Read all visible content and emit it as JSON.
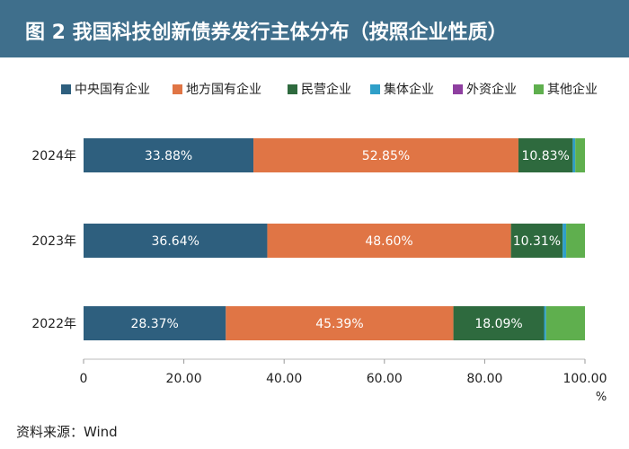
{
  "title": "图 2    我国科技创新债券发行主体分布（按照企业性质）",
  "source": "资料来源：Wind",
  "colors": {
    "title_bg": "#3f6f8c",
    "series": [
      "#2e5f7e",
      "#e07545",
      "#2e6a3e",
      "#2f9fc8",
      "#8e3fa0",
      "#5faf4e"
    ],
    "grid": "#cccccc",
    "bar_label": "#ffffff"
  },
  "chart_data": {
    "type": "bar",
    "orientation": "horizontal",
    "stacked": true,
    "categories": [
      "2024年",
      "2023年",
      "2022年"
    ],
    "series": [
      {
        "name": "中央国有企业",
        "values": [
          33.88,
          36.64,
          28.37
        ],
        "labels": [
          "33.88%",
          "36.64%",
          "28.37%"
        ]
      },
      {
        "name": "地方国有企业",
        "values": [
          52.85,
          48.6,
          45.39
        ],
        "labels": [
          "52.85%",
          "48.60%",
          "45.39%"
        ]
      },
      {
        "name": "民营企业",
        "values": [
          10.83,
          10.31,
          18.09
        ],
        "labels": [
          "10.83%",
          "10.31%",
          "18.09%"
        ]
      },
      {
        "name": "集体企业",
        "values": [
          0.5,
          0.7,
          0.4
        ],
        "labels": [
          "",
          "",
          ""
        ]
      },
      {
        "name": "外资企业",
        "values": [
          0.0,
          0.0,
          0.0
        ],
        "labels": [
          "",
          "",
          ""
        ]
      },
      {
        "name": "其他企业",
        "values": [
          1.94,
          3.75,
          7.75
        ],
        "labels": [
          "",
          "",
          ""
        ]
      }
    ],
    "xlim": [
      0,
      100
    ],
    "xticks": [
      "0",
      "20.00",
      "40.00",
      "60.00",
      "80.00",
      "100.00"
    ],
    "xunit": "%",
    "legend_position": "top",
    "grid": false
  }
}
